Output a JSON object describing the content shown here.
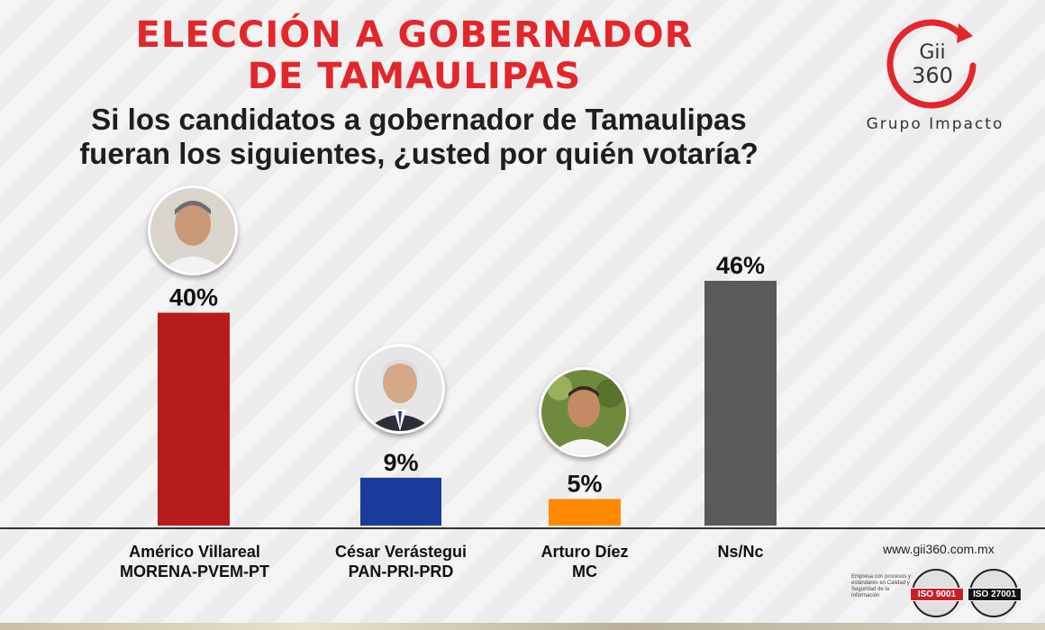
{
  "header": {
    "title_line1": "ELECCIÓN A GOBERNADOR",
    "title_line2": "DE TAMAULIPAS",
    "subtitle_line1": "Si los candidatos a gobernador de Tamaulipas",
    "subtitle_line2": "fueran los siguientes, ¿usted por quién votaría?"
  },
  "brand": {
    "logo_line1": "Gii",
    "logo_line2": "360",
    "name": "Grupo Impacto",
    "url": "www.gii360.com.mx",
    "cert_text": "Empresa con procesos y estándares en Calidad y Seguridad de la Información",
    "cert1": "ISO 9001",
    "cert2": "ISO 27001",
    "accent": "#e3262b"
  },
  "candidates": [
    {
      "name": "Américo Villareal",
      "party": "MORENA-PVEM-PT",
      "photo": "candidate-photo"
    },
    {
      "name": "César Verástegui",
      "party": "PAN-PRI-PRD",
      "photo": "candidate-photo"
    },
    {
      "name": "Arturo Díez",
      "party": "MC",
      "photo": "candidate-photo"
    },
    {
      "name": "Ns/Nc",
      "party": "",
      "photo": ""
    }
  ],
  "chart_data": {
    "type": "bar",
    "title": "ELECCIÓN A GOBERNADOR DE TAMAULIPAS",
    "categories": [
      "Américo Villareal MORENA-PVEM-PT",
      "César Verástegui PAN-PRI-PRD",
      "Arturo Díez MC",
      "Ns/Nc"
    ],
    "values": [
      40,
      9,
      5,
      46
    ],
    "value_labels": [
      "40%",
      "9%",
      "5%",
      "46%"
    ],
    "colors": [
      "#b71c1c",
      "#1a3a9c",
      "#ff8a00",
      "#5a5a5a"
    ],
    "unit": "%",
    "ylim": [
      0,
      46
    ],
    "grid": false,
    "legend": "none"
  }
}
